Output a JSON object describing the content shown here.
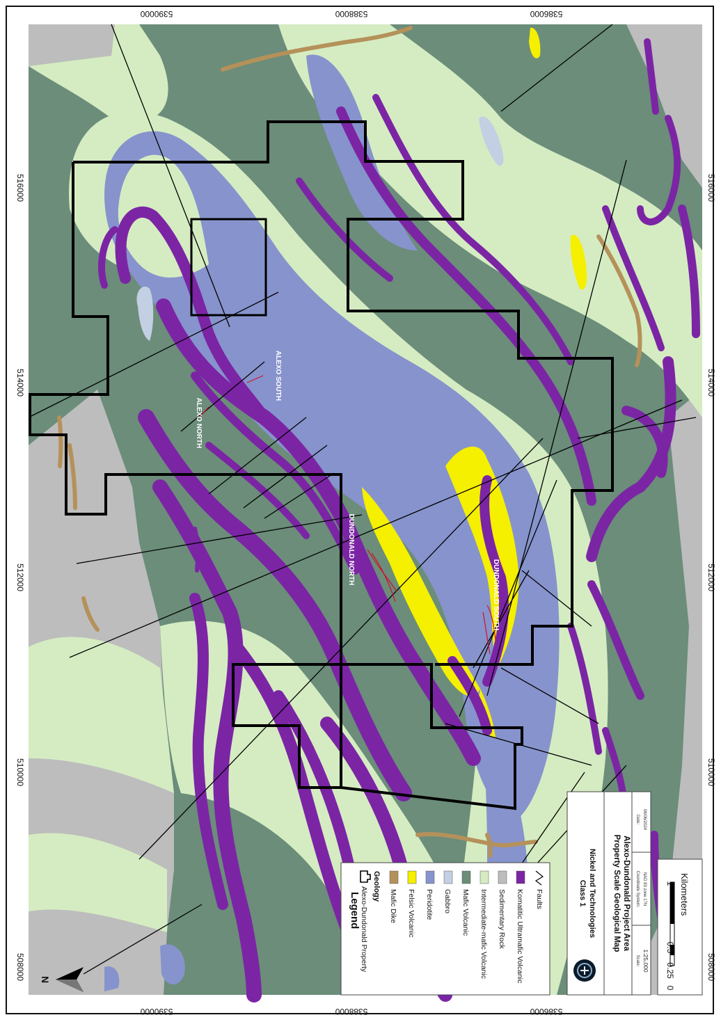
{
  "grid": {
    "easting_labels": [
      "516000",
      "514000",
      "512000",
      "510000",
      "508000"
    ],
    "northing_labels": [
      "5390000",
      "5388000",
      "5386000"
    ]
  },
  "sites": {
    "alexo_north": "ALEXO NORTH",
    "alexo_south": "ALEXO SOUTH",
    "dundonald_north": "DUNDONALD NORTH",
    "dundonald_south": "DUNDONALD SOUTH"
  },
  "legend": {
    "title": "Legend",
    "property": "Alexo-Dundonald Property",
    "geology_header": "Geology",
    "items": [
      {
        "label": "Mafic Dike",
        "color": "#b5915a"
      },
      {
        "label": "Felsic Volcanic",
        "color": "#f5ef00"
      },
      {
        "label": "Peridotite",
        "color": "#8793cc"
      },
      {
        "label": "Gabbro",
        "color": "#c3cfe3"
      },
      {
        "label": "Mafic Volcanic",
        "color": "#6b8d7a"
      },
      {
        "label": "Intermediate-mafic Volcanic",
        "color": "#d5ecc2"
      },
      {
        "label": "Sedimentary Rock",
        "color": "#bdbdbd"
      },
      {
        "label": "Komatitic Ultramafic Volcanic",
        "color": "#7b25a5"
      }
    ],
    "faults": "Faults"
  },
  "title_block": {
    "class_line": "Class 1",
    "company": "Nickel and Technologies",
    "map_title": "Property Scale Geological Map",
    "area": "Alexo-Dundonald Project Area",
    "scale_label": "Scale:",
    "scale": "1:25,000",
    "coord_label": "Coordinate System:",
    "coord": "NAD 83 zone 17N",
    "date_label": "Date:",
    "date": "06/06/2024"
  },
  "scale_bar": {
    "ticks": [
      "0",
      "0.25",
      "0.5",
      "1"
    ],
    "unit": "Kilometers"
  },
  "north": "N",
  "colors": {
    "mafic_volcanic": "#6b8d7a",
    "intermediate": "#d5ecc2",
    "peridotite": "#8793cc",
    "felsic": "#f5ef00",
    "komatiite": "#7b25a5",
    "sedimentary": "#bdbdbd",
    "gabbro": "#c3cfe3",
    "mafic_dike": "#b5915a"
  }
}
